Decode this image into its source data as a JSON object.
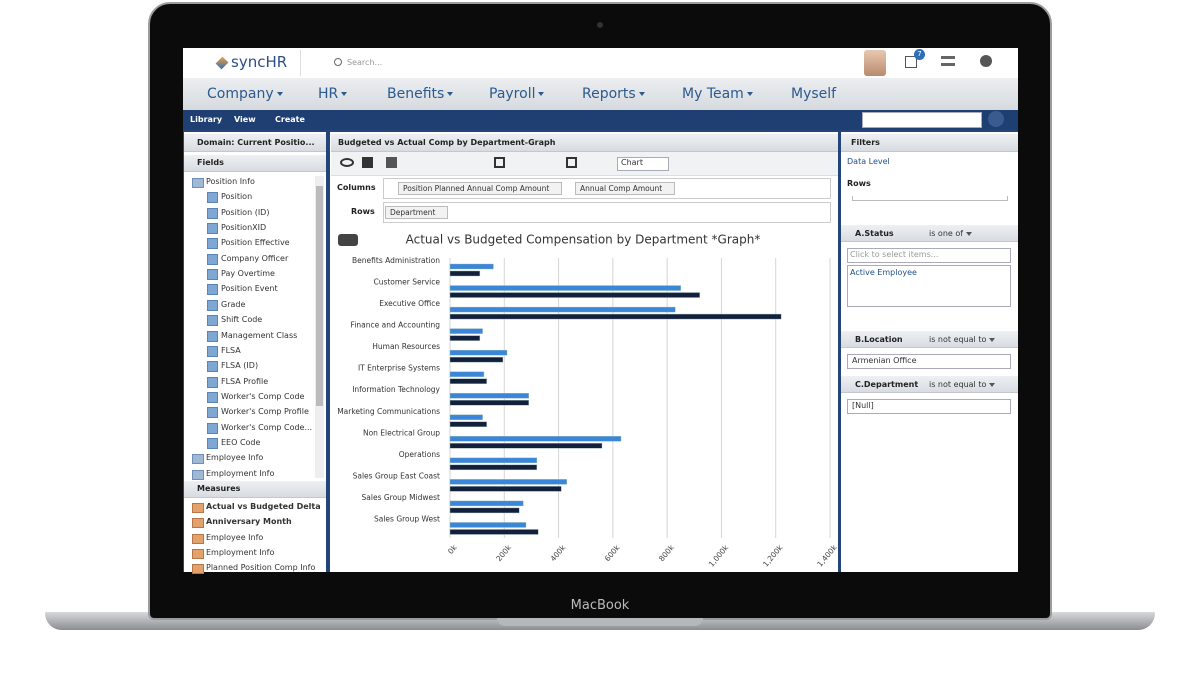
{
  "header": {
    "logo": "syncHR",
    "search": "Search...",
    "badge": "7"
  },
  "nav": [
    "Company",
    "HR",
    "Benefits",
    "Payroll",
    "Reports",
    "My Team",
    "Myself"
  ],
  "toolbar": [
    "Library",
    "View",
    "Create"
  ],
  "left": {
    "domain": "Domain: Current Positio...",
    "fields_title": "Fields",
    "fields": [
      {
        "group": "Position Info",
        "items": [
          "Position",
          "Position (ID)",
          "PositionXID",
          "Position Effective",
          "Company Officer",
          "Pay Overtime",
          "Position Event",
          "Grade",
          "Shift Code",
          "Management Class",
          "FLSA",
          "FLSA (ID)",
          "FLSA Profile",
          "Worker's Comp Code",
          "Worker's Comp Profile",
          "Worker's Comp Code...",
          "EEO Code"
        ]
      },
      {
        "group": "Employee Info"
      },
      {
        "group": "Employment Info"
      }
    ],
    "measures_title": "Measures",
    "measures": [
      "Actual vs Budgeted Delta",
      "Anniversary Month",
      "Employee Info",
      "Employment Info",
      "Planned Position Comp Info"
    ]
  },
  "center": {
    "title": "Budgeted vs Actual Comp by Department-Graph",
    "view": "Chart",
    "columns_label": "Columns",
    "columns": [
      "Position Planned Annual Comp Amount",
      "Annual Comp Amount"
    ],
    "rows_label": "Rows",
    "rows": [
      "Department"
    ]
  },
  "chart_data": {
    "type": "bar",
    "orientation": "horizontal",
    "title": "Actual vs Budgeted Compensation by Department *Graph*",
    "categories": [
      "Benefits Administration",
      "Customer Service",
      "Executive Office",
      "Finance and Accounting",
      "Human Resources",
      "IT Enterprise Systems",
      "Information Technology",
      "Marketing Communications",
      "Non Electrical Group",
      "Operations",
      "Sales Group East Coast",
      "Sales Group Midwest",
      "Sales Group West"
    ],
    "series": [
      {
        "color": "#3a86d8",
        "values": [
          160000,
          850000,
          830000,
          120000,
          210000,
          125000,
          290000,
          120000,
          630000,
          320000,
          430000,
          270000,
          280000
        ]
      },
      {
        "color": "#13203b",
        "values": [
          110000,
          920000,
          1220000,
          110000,
          195000,
          135000,
          290000,
          135000,
          560000,
          320000,
          410000,
          255000,
          325000
        ]
      }
    ],
    "xlim": [
      0,
      1400000
    ],
    "xticks": [
      {
        "value": 0,
        "label": "0k"
      },
      {
        "value": 200000,
        "label": "200k"
      },
      {
        "value": 400000,
        "label": "400k"
      },
      {
        "value": 600000,
        "label": "600k"
      },
      {
        "value": 800000,
        "label": "800k"
      },
      {
        "value": 1000000,
        "label": "1,000k"
      },
      {
        "value": 1200000,
        "label": "1,200k"
      },
      {
        "value": 1400000,
        "label": "1,400k"
      }
    ],
    "grid": true
  },
  "filters": {
    "title": "Filters",
    "data_level": "Data Level",
    "rows": "Rows",
    "items": [
      {
        "name": "A.Status",
        "op": "is one of",
        "placeholder": "Click to select items...",
        "values": [
          "Active Employee"
        ]
      },
      {
        "name": "B.Location",
        "op": "is not equal to",
        "value": "Armenian Office"
      },
      {
        "name": "C.Department",
        "op": "is not equal to",
        "value": "[Null]"
      }
    ]
  },
  "laptop": "MacBook"
}
